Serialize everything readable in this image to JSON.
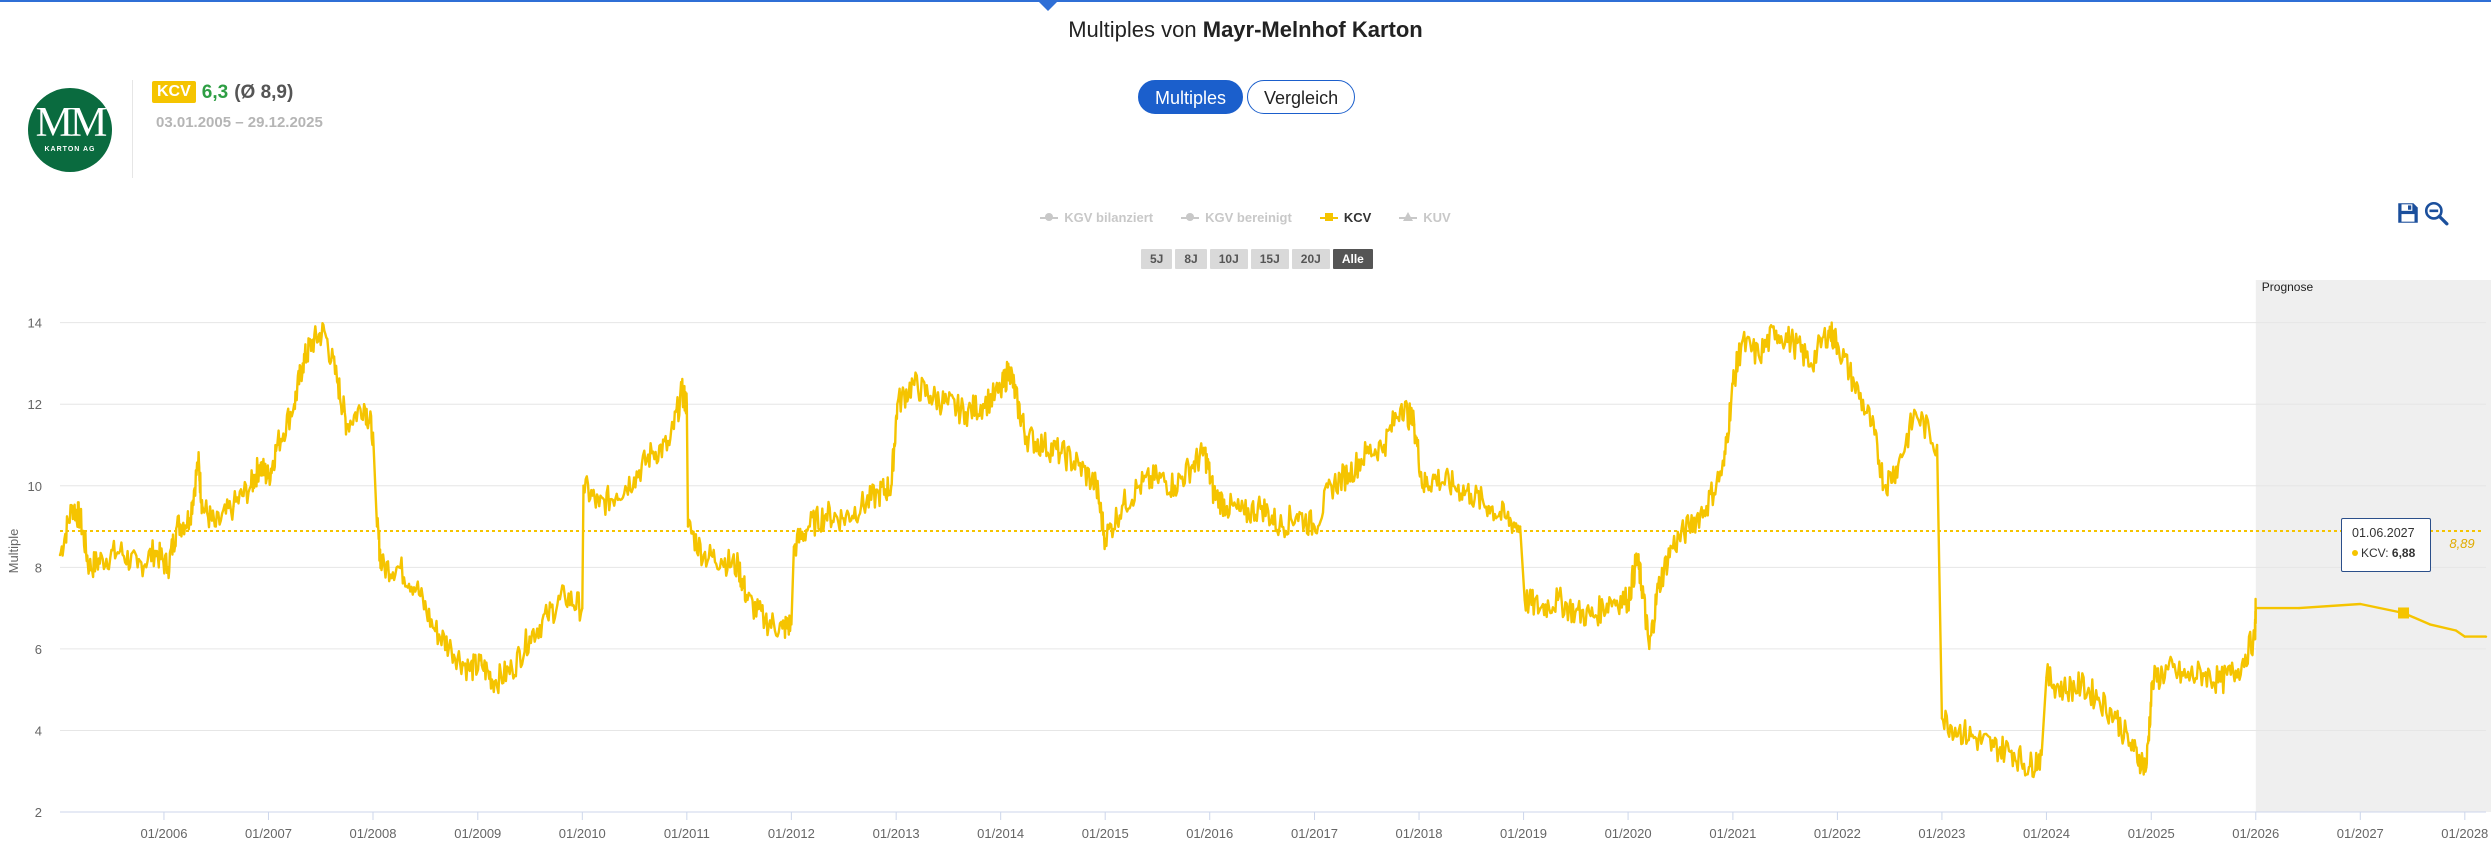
{
  "header": {
    "title_prefix": "Multiples von",
    "title_company": "Mayr-Melnhof Karton"
  },
  "logo": {
    "mark": "MM",
    "subtext": "KARTON AG"
  },
  "metric": {
    "badge": "KCV",
    "value": "6,3",
    "avg": "(Ø 8,9)",
    "date_range": "03.01.2005 – 29.12.2025"
  },
  "toggle": {
    "multiples": "Multiples",
    "vergleich": "Vergleich"
  },
  "legend": [
    {
      "label": "KGV bilanziert",
      "active": false,
      "symbol": "circle"
    },
    {
      "label": "KGV bereinigt",
      "active": false,
      "symbol": "circle"
    },
    {
      "label": "KCV",
      "active": true,
      "symbol": "square"
    },
    {
      "label": "KUV",
      "active": false,
      "symbol": "triangle"
    }
  ],
  "ranges": [
    "5J",
    "8J",
    "10J",
    "15J",
    "20J",
    "Alle"
  ],
  "active_range": "Alle",
  "tools": {
    "save": "save-icon",
    "zoom_out": "zoom-out-icon"
  },
  "colors": {
    "series": "#f5c400",
    "accent": "#1b5fcc",
    "logo": "#0a6b3f",
    "value": "#2e9e44",
    "forecast_band": "#efefef"
  },
  "tooltip": {
    "date": "01.06.2027",
    "label": "KCV:",
    "value": "6,88"
  },
  "chart_data": {
    "type": "line",
    "ylabel": "Multiple",
    "ylim": [
      2,
      14.8
    ],
    "yticks": [
      2,
      4,
      6,
      8,
      10,
      12,
      14
    ],
    "x_range": [
      "2005-01-03",
      "2028-03-15"
    ],
    "xticks": [
      "01/2006",
      "01/2007",
      "01/2008",
      "01/2009",
      "01/2010",
      "01/2011",
      "01/2012",
      "01/2013",
      "01/2014",
      "01/2015",
      "01/2016",
      "01/2017",
      "01/2018",
      "01/2019",
      "01/2020",
      "01/2021",
      "01/2022",
      "01/2023",
      "01/2024",
      "01/2025",
      "01/2026",
      "01/2027",
      "01/2028"
    ],
    "average": {
      "value": 8.89,
      "label": "8,89"
    },
    "forecast": {
      "start": "2026-01-01",
      "label": "Prognose"
    },
    "series": [
      {
        "name": "KCV",
        "points": [
          [
            "2005-01-03",
            8.3
          ],
          [
            "2005-02-15",
            9.5
          ],
          [
            "2005-03-15",
            9.2
          ],
          [
            "2005-04-15",
            8.0
          ],
          [
            "2005-06-01",
            8.2
          ],
          [
            "2005-08-01",
            8.4
          ],
          [
            "2005-10-01",
            8.0
          ],
          [
            "2005-12-01",
            8.4
          ],
          [
            "2006-01-15",
            8.0
          ],
          [
            "2006-02-15",
            9.0
          ],
          [
            "2006-04-01",
            9.2
          ],
          [
            "2006-05-01",
            10.6
          ],
          [
            "2006-05-15",
            9.5
          ],
          [
            "2006-07-01",
            9.0
          ],
          [
            "2006-09-01",
            9.5
          ],
          [
            "2006-11-01",
            10.0
          ],
          [
            "2006-12-01",
            10.5
          ],
          [
            "2007-01-01",
            10.2
          ],
          [
            "2007-02-01",
            11.0
          ],
          [
            "2007-04-01",
            12.0
          ],
          [
            "2007-05-01",
            13.0
          ],
          [
            "2007-06-01",
            13.5
          ],
          [
            "2007-07-15",
            13.8
          ],
          [
            "2007-09-01",
            12.5
          ],
          [
            "2007-10-01",
            11.5
          ],
          [
            "2007-12-01",
            12.0
          ],
          [
            "2008-01-01",
            11.3
          ],
          [
            "2008-01-15",
            9.0
          ],
          [
            "2008-02-01",
            8.0
          ],
          [
            "2008-04-01",
            8.0
          ],
          [
            "2008-06-01",
            7.5
          ],
          [
            "2008-08-01",
            6.5
          ],
          [
            "2008-10-01",
            6.0
          ],
          [
            "2008-12-01",
            5.5
          ],
          [
            "2009-01-15",
            5.6
          ],
          [
            "2009-03-01",
            5.2
          ],
          [
            "2009-05-01",
            5.5
          ],
          [
            "2009-07-01",
            6.3
          ],
          [
            "2009-09-01",
            6.8
          ],
          [
            "2009-11-01",
            7.3
          ],
          [
            "2010-01-01",
            7.0
          ],
          [
            "2010-01-05",
            10.0
          ],
          [
            "2010-03-01",
            9.5
          ],
          [
            "2010-05-01",
            9.8
          ],
          [
            "2010-07-01",
            10.2
          ],
          [
            "2010-09-01",
            10.8
          ],
          [
            "2010-11-01",
            11.0
          ],
          [
            "2010-12-15",
            12.3
          ],
          [
            "2011-01-01",
            12.0
          ],
          [
            "2011-01-05",
            9.0
          ],
          [
            "2011-03-01",
            8.3
          ],
          [
            "2011-05-01",
            8.2
          ],
          [
            "2011-07-01",
            8.0
          ],
          [
            "2011-08-01",
            7.2
          ],
          [
            "2011-10-01",
            6.7
          ],
          [
            "2011-12-01",
            6.5
          ],
          [
            "2012-01-01",
            6.6
          ],
          [
            "2012-01-10",
            8.5
          ],
          [
            "2012-03-01",
            9.0
          ],
          [
            "2012-05-01",
            9.3
          ],
          [
            "2012-07-01",
            9.2
          ],
          [
            "2012-09-01",
            9.5
          ],
          [
            "2012-11-01",
            9.8
          ],
          [
            "2012-12-15",
            10.0
          ],
          [
            "2013-01-05",
            12.0
          ],
          [
            "2013-03-01",
            12.5
          ],
          [
            "2013-05-01",
            12.2
          ],
          [
            "2013-07-01",
            12.0
          ],
          [
            "2013-09-01",
            11.8
          ],
          [
            "2013-11-01",
            12.0
          ],
          [
            "2014-01-01",
            12.3
          ],
          [
            "2014-02-01",
            12.9
          ],
          [
            "2014-03-01",
            12.0
          ],
          [
            "2014-04-01",
            11.2
          ],
          [
            "2014-06-01",
            11.0
          ],
          [
            "2014-08-01",
            10.8
          ],
          [
            "2014-10-01",
            10.5
          ],
          [
            "2014-12-01",
            10.0
          ],
          [
            "2015-01-01",
            8.7
          ],
          [
            "2015-03-01",
            9.5
          ],
          [
            "2015-05-01",
            10.0
          ],
          [
            "2015-07-01",
            10.2
          ],
          [
            "2015-09-01",
            10.0
          ],
          [
            "2015-11-01",
            10.5
          ],
          [
            "2015-12-15",
            10.8
          ],
          [
            "2016-01-15",
            9.8
          ],
          [
            "2016-03-01",
            9.5
          ],
          [
            "2016-05-01",
            9.3
          ],
          [
            "2016-07-01",
            9.5
          ],
          [
            "2016-09-01",
            9.0
          ],
          [
            "2016-11-01",
            9.3
          ],
          [
            "2017-01-01",
            9.0
          ],
          [
            "2017-03-01",
            10.0
          ],
          [
            "2017-05-01",
            10.3
          ],
          [
            "2017-07-01",
            10.8
          ],
          [
            "2017-09-01",
            11.0
          ],
          [
            "2017-11-01",
            12.0
          ],
          [
            "2017-12-15",
            11.5
          ],
          [
            "2018-01-15",
            10.0
          ],
          [
            "2018-03-01",
            10.2
          ],
          [
            "2018-05-01",
            10.0
          ],
          [
            "2018-07-01",
            9.8
          ],
          [
            "2018-09-01",
            9.5
          ],
          [
            "2018-11-01",
            9.2
          ],
          [
            "2018-12-20",
            9.0
          ],
          [
            "2019-01-05",
            7.2
          ],
          [
            "2019-03-01",
            7.0
          ],
          [
            "2019-05-01",
            7.2
          ],
          [
            "2019-07-01",
            6.9
          ],
          [
            "2019-09-01",
            6.8
          ],
          [
            "2019-11-01",
            7.2
          ],
          [
            "2020-01-01",
            7.2
          ],
          [
            "2020-02-01",
            8.2
          ],
          [
            "2020-02-20",
            7.5
          ],
          [
            "2020-03-15",
            6.0
          ],
          [
            "2020-04-15",
            7.5
          ],
          [
            "2020-06-01",
            8.5
          ],
          [
            "2020-08-01",
            9.0
          ],
          [
            "2020-10-01",
            9.5
          ],
          [
            "2020-12-01",
            10.5
          ],
          [
            "2021-01-01",
            12.5
          ],
          [
            "2021-02-01",
            13.5
          ],
          [
            "2021-04-01",
            13.2
          ],
          [
            "2021-06-01",
            13.8
          ],
          [
            "2021-08-01",
            13.5
          ],
          [
            "2021-10-01",
            13.0
          ],
          [
            "2021-12-01",
            13.8
          ],
          [
            "2022-01-01",
            13.5
          ],
          [
            "2022-03-01",
            12.5
          ],
          [
            "2022-05-01",
            11.5
          ],
          [
            "2022-06-15",
            10.0
          ],
          [
            "2022-08-01",
            10.5
          ],
          [
            "2022-10-01",
            11.8
          ],
          [
            "2022-12-15",
            11.0
          ],
          [
            "2023-01-01",
            4.3
          ],
          [
            "2023-03-01",
            4.0
          ],
          [
            "2023-05-01",
            3.8
          ],
          [
            "2023-07-01",
            3.6
          ],
          [
            "2023-09-01",
            3.5
          ],
          [
            "2023-11-01",
            3.1
          ],
          [
            "2023-12-15",
            3.4
          ],
          [
            "2024-01-01",
            5.3
          ],
          [
            "2024-03-01",
            5.0
          ],
          [
            "2024-05-01",
            5.1
          ],
          [
            "2024-07-01",
            4.8
          ],
          [
            "2024-09-01",
            4.3
          ],
          [
            "2024-11-01",
            3.5
          ],
          [
            "2024-12-15",
            3.1
          ],
          [
            "2025-01-05",
            5.2
          ],
          [
            "2025-03-01",
            5.5
          ],
          [
            "2025-05-01",
            5.3
          ],
          [
            "2025-07-01",
            5.4
          ],
          [
            "2025-09-01",
            5.2
          ],
          [
            "2025-11-01",
            5.5
          ],
          [
            "2025-12-29",
            6.3
          ],
          [
            "2026-01-01",
            7.0
          ],
          [
            "2026-06-01",
            7.0
          ],
          [
            "2027-01-01",
            7.1
          ],
          [
            "2027-06-01",
            6.88
          ],
          [
            "2027-09-01",
            6.6
          ],
          [
            "2027-12-01",
            6.45
          ],
          [
            "2028-01-01",
            6.3
          ],
          [
            "2028-03-15",
            6.3
          ]
        ]
      }
    ]
  }
}
